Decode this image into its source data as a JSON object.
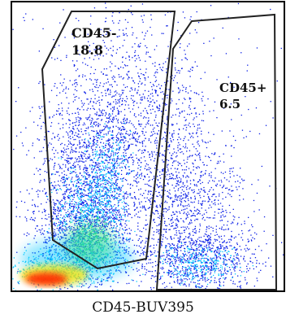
{
  "chart_data": {
    "type": "scatter",
    "xlabel": "CD45-BUV395",
    "ylabel": "",
    "title": "",
    "gates": [
      {
        "name": "CD45-",
        "percent": "18.8"
      },
      {
        "name": "CD45+",
        "percent": "6.5"
      }
    ]
  },
  "colors": {
    "density_low": "#0a1ee6",
    "density_mid": "#00c8ff",
    "density_midhigh": "#38e07a",
    "density_high": "#ffe600",
    "density_peak": "#ff2400",
    "gate_line": "#222222",
    "frame": "#000000"
  }
}
